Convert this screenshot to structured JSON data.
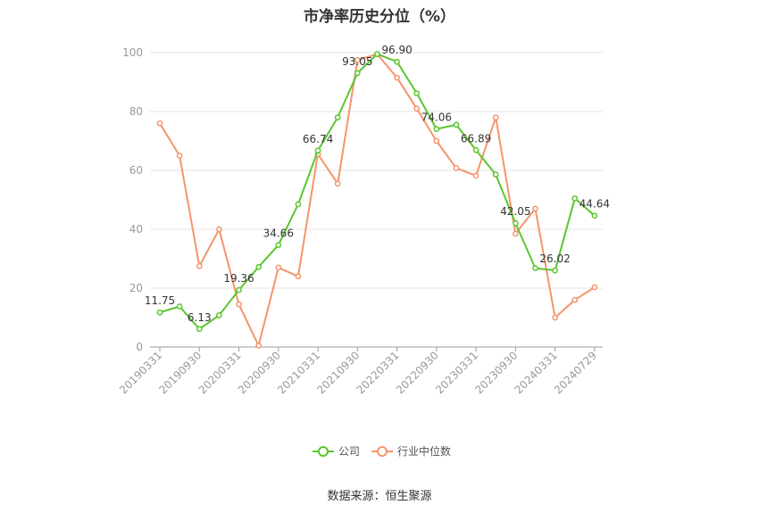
{
  "chart_data": {
    "type": "line",
    "title": "市净率历史分位（%）",
    "source": "数据来源：恒生聚源",
    "ylim": [
      0,
      100
    ],
    "yticks": [
      0,
      20,
      40,
      60,
      80,
      100
    ],
    "xtick_labels": [
      "20190331",
      "20190930",
      "20200331",
      "20200930",
      "20210331",
      "20210930",
      "20220331",
      "20220930",
      "20230331",
      "20230930",
      "20240331",
      "20240729"
    ],
    "x": [
      "20190331",
      "20190630",
      "20190930",
      "20191231",
      "20200331",
      "20200630",
      "20200930",
      "20201231",
      "20210331",
      "20210630",
      "20210930",
      "20211231",
      "20220331",
      "20220630",
      "20220930",
      "20221231",
      "20230331",
      "20230630",
      "20230930",
      "20231231",
      "20240331",
      "20240630",
      "20240729"
    ],
    "series": [
      {
        "name": "公司",
        "color": "#5ac62d",
        "values": [
          11.75,
          13.8,
          6.13,
          10.8,
          19.36,
          27.2,
          34.66,
          48.5,
          66.74,
          78.0,
          93.05,
          99.5,
          96.9,
          86.2,
          74.06,
          75.5,
          66.89,
          58.6,
          42.05,
          26.8,
          26.02,
          50.5,
          44.64
        ],
        "labels": [
          "11.75",
          "",
          "6.13",
          "",
          "19.36",
          "",
          "34.66",
          "",
          "66.74",
          "",
          "93.05",
          "",
          "96.90",
          "",
          "74.06",
          "",
          "66.89",
          "",
          "42.05",
          "",
          "26.02",
          "",
          "44.64"
        ]
      },
      {
        "name": "行业中位数",
        "color": "#f5946b",
        "values": [
          76.0,
          65.0,
          27.5,
          40.0,
          14.5,
          0.5,
          27.0,
          24.0,
          65.5,
          55.5,
          97.5,
          99.5,
          91.5,
          81.0,
          70.0,
          60.8,
          58.2,
          78.0,
          38.5,
          47.0,
          10.0,
          16.0,
          20.3
        ]
      }
    ],
    "legend_position": "bottom-center",
    "grid": true
  }
}
